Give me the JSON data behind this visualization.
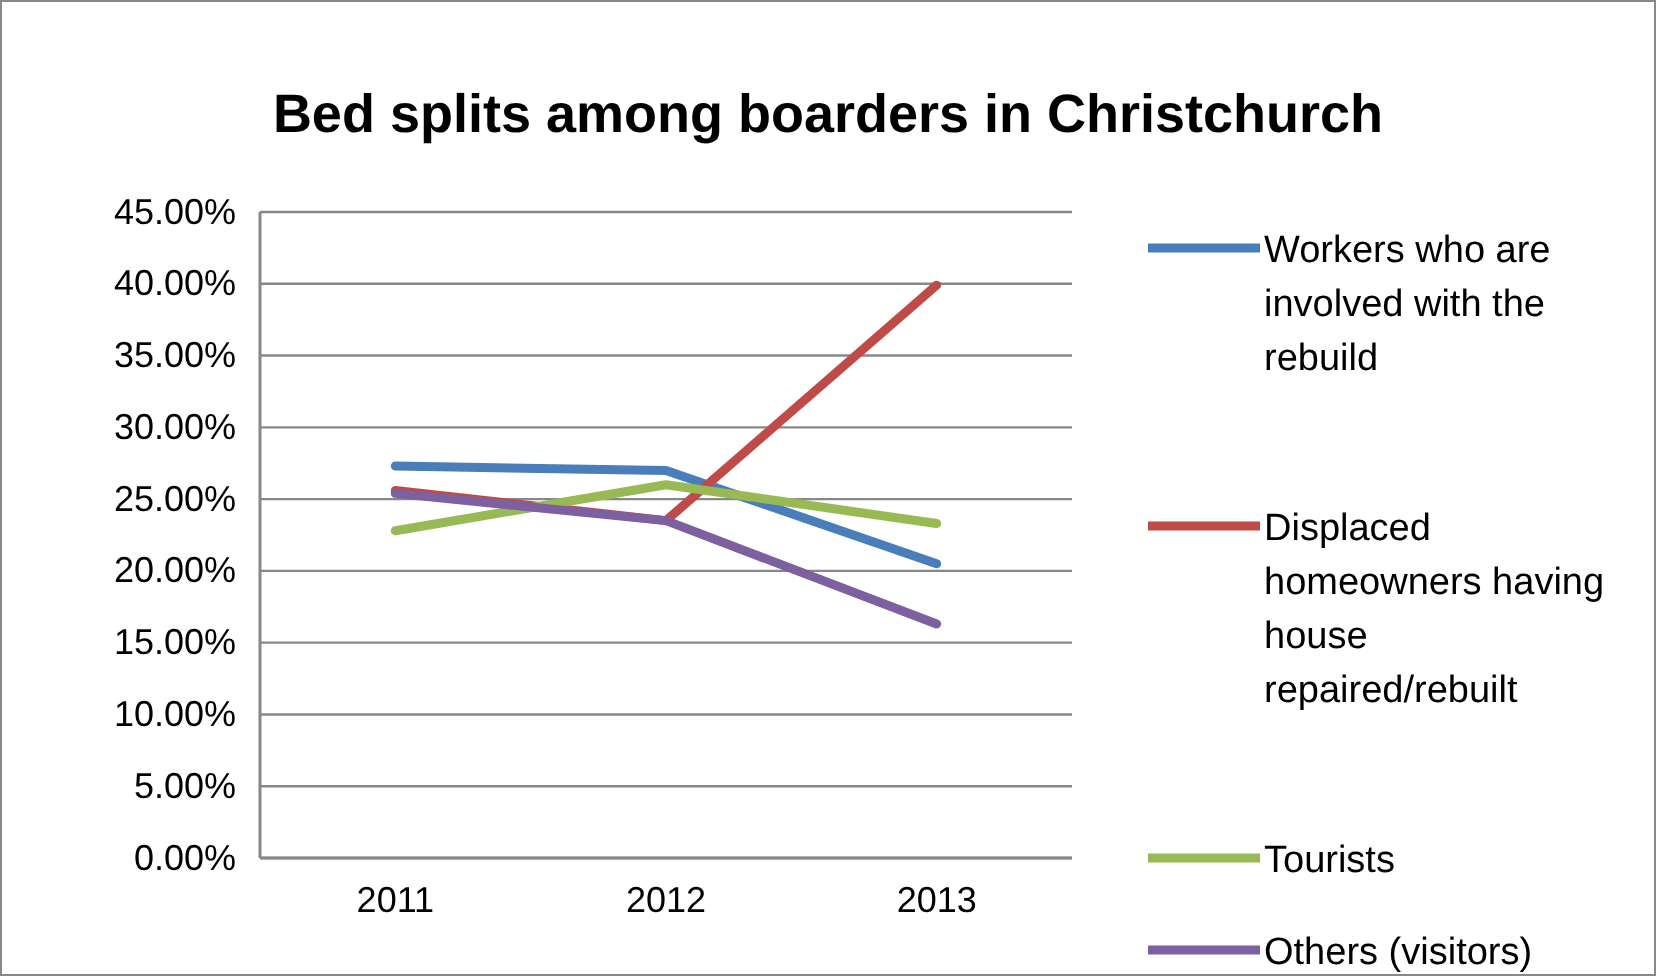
{
  "chart_data": {
    "type": "line",
    "title": "Bed splits among boarders in Christchurch",
    "categories": [
      "2011",
      "2012",
      "2013"
    ],
    "series": [
      {
        "name": "Workers who are involved with the rebuild",
        "color": "#4a7ebb",
        "values": [
          27.3,
          27.0,
          20.5
        ]
      },
      {
        "name": "Displaced homeowners having house repaired/rebuilt",
        "color": "#be4b48",
        "values": [
          25.6,
          23.5,
          39.9
        ]
      },
      {
        "name": "Tourists",
        "color": "#98b954",
        "values": [
          22.8,
          26.0,
          23.3
        ]
      },
      {
        "name": "Others (visitors)",
        "color": "#7d60a0",
        "values": [
          25.4,
          23.5,
          16.3
        ]
      }
    ],
    "ylim": [
      0,
      45
    ],
    "yticks": [
      {
        "value": 0,
        "label": "0.00%"
      },
      {
        "value": 5,
        "label": "5.00%"
      },
      {
        "value": 10,
        "label": "10.00%"
      },
      {
        "value": 15,
        "label": "15.00%"
      },
      {
        "value": 20,
        "label": "20.00%"
      },
      {
        "value": 25,
        "label": "25.00%"
      },
      {
        "value": 30,
        "label": "30.00%"
      },
      {
        "value": 35,
        "label": "35.00%"
      },
      {
        "value": 40,
        "label": "40.00%"
      },
      {
        "value": 45,
        "label": "45.00%"
      }
    ],
    "grid": "y",
    "legend": "right",
    "marker": "none",
    "line_style": "solid"
  }
}
